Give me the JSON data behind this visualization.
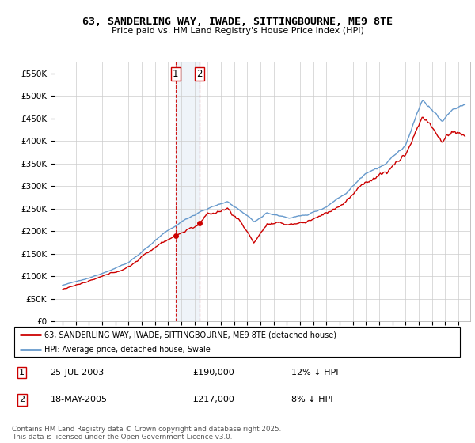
{
  "title": "63, SANDERLING WAY, IWADE, SITTINGBOURNE, ME9 8TE",
  "subtitle": "Price paid vs. HM Land Registry's House Price Index (HPI)",
  "legend_line1": "63, SANDERLING WAY, IWADE, SITTINGBOURNE, ME9 8TE (detached house)",
  "legend_line2": "HPI: Average price, detached house, Swale",
  "purchase1_date": "25-JUL-2003",
  "purchase1_price": "£190,000",
  "purchase1_hpi": "12% ↓ HPI",
  "purchase1_year": 2003.56,
  "purchase1_value": 190000,
  "purchase2_date": "18-MAY-2005",
  "purchase2_price": "£217,000",
  "purchase2_hpi": "8% ↓ HPI",
  "purchase2_year": 2005.38,
  "purchase2_value": 217000,
  "footer": "Contains HM Land Registry data © Crown copyright and database right 2025.\nThis data is licensed under the Open Government Licence v3.0.",
  "ylim": [
    0,
    575000
  ],
  "yticks": [
    0,
    50000,
    100000,
    150000,
    200000,
    250000,
    300000,
    350000,
    400000,
    450000,
    500000,
    550000
  ],
  "color_red": "#cc0000",
  "color_blue": "#6699cc",
  "grid_color": "#cccccc",
  "xstart": 1995,
  "xend": 2025
}
